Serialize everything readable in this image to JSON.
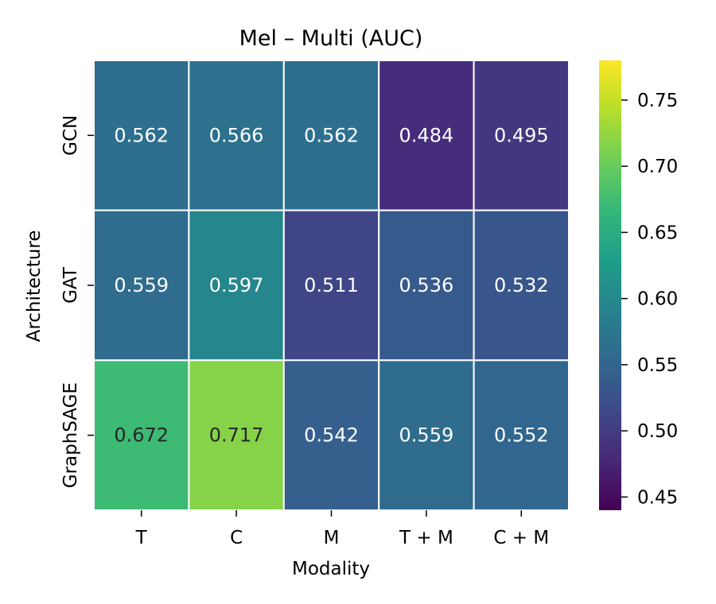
{
  "chart_data": {
    "type": "heatmap",
    "title": "Mel – Multi (AUC)",
    "xlabel": "Modality",
    "ylabel": "Architecture",
    "x_categories": [
      "T",
      "C",
      "M",
      "T + M",
      "C + M"
    ],
    "y_categories": [
      "GCN",
      "GAT",
      "GraphSAGE"
    ],
    "values": [
      [
        0.562,
        0.566,
        0.562,
        0.484,
        0.495
      ],
      [
        0.559,
        0.597,
        0.511,
        0.536,
        0.532
      ],
      [
        0.672,
        0.717,
        0.542,
        0.559,
        0.552
      ]
    ],
    "value_labels": [
      [
        "0.562",
        "0.566",
        "0.562",
        "0.484",
        "0.495"
      ],
      [
        "0.559",
        "0.597",
        "0.511",
        "0.536",
        "0.532"
      ],
      [
        "0.672",
        "0.717",
        "0.542",
        "0.559",
        "0.552"
      ]
    ],
    "colormap": "viridis",
    "vmin": 0.44,
    "vmax": 0.78,
    "colorbar_ticks": [
      0.45,
      0.5,
      0.55,
      0.6,
      0.65,
      0.7,
      0.75
    ],
    "colorbar_tick_labels": [
      "0.45",
      "0.50",
      "0.55",
      "0.60",
      "0.65",
      "0.70",
      "0.75"
    ],
    "cell_text_colors": {
      "dark": "#262626",
      "light": "#ffffff"
    },
    "grid_line_color": "#ffffff"
  }
}
